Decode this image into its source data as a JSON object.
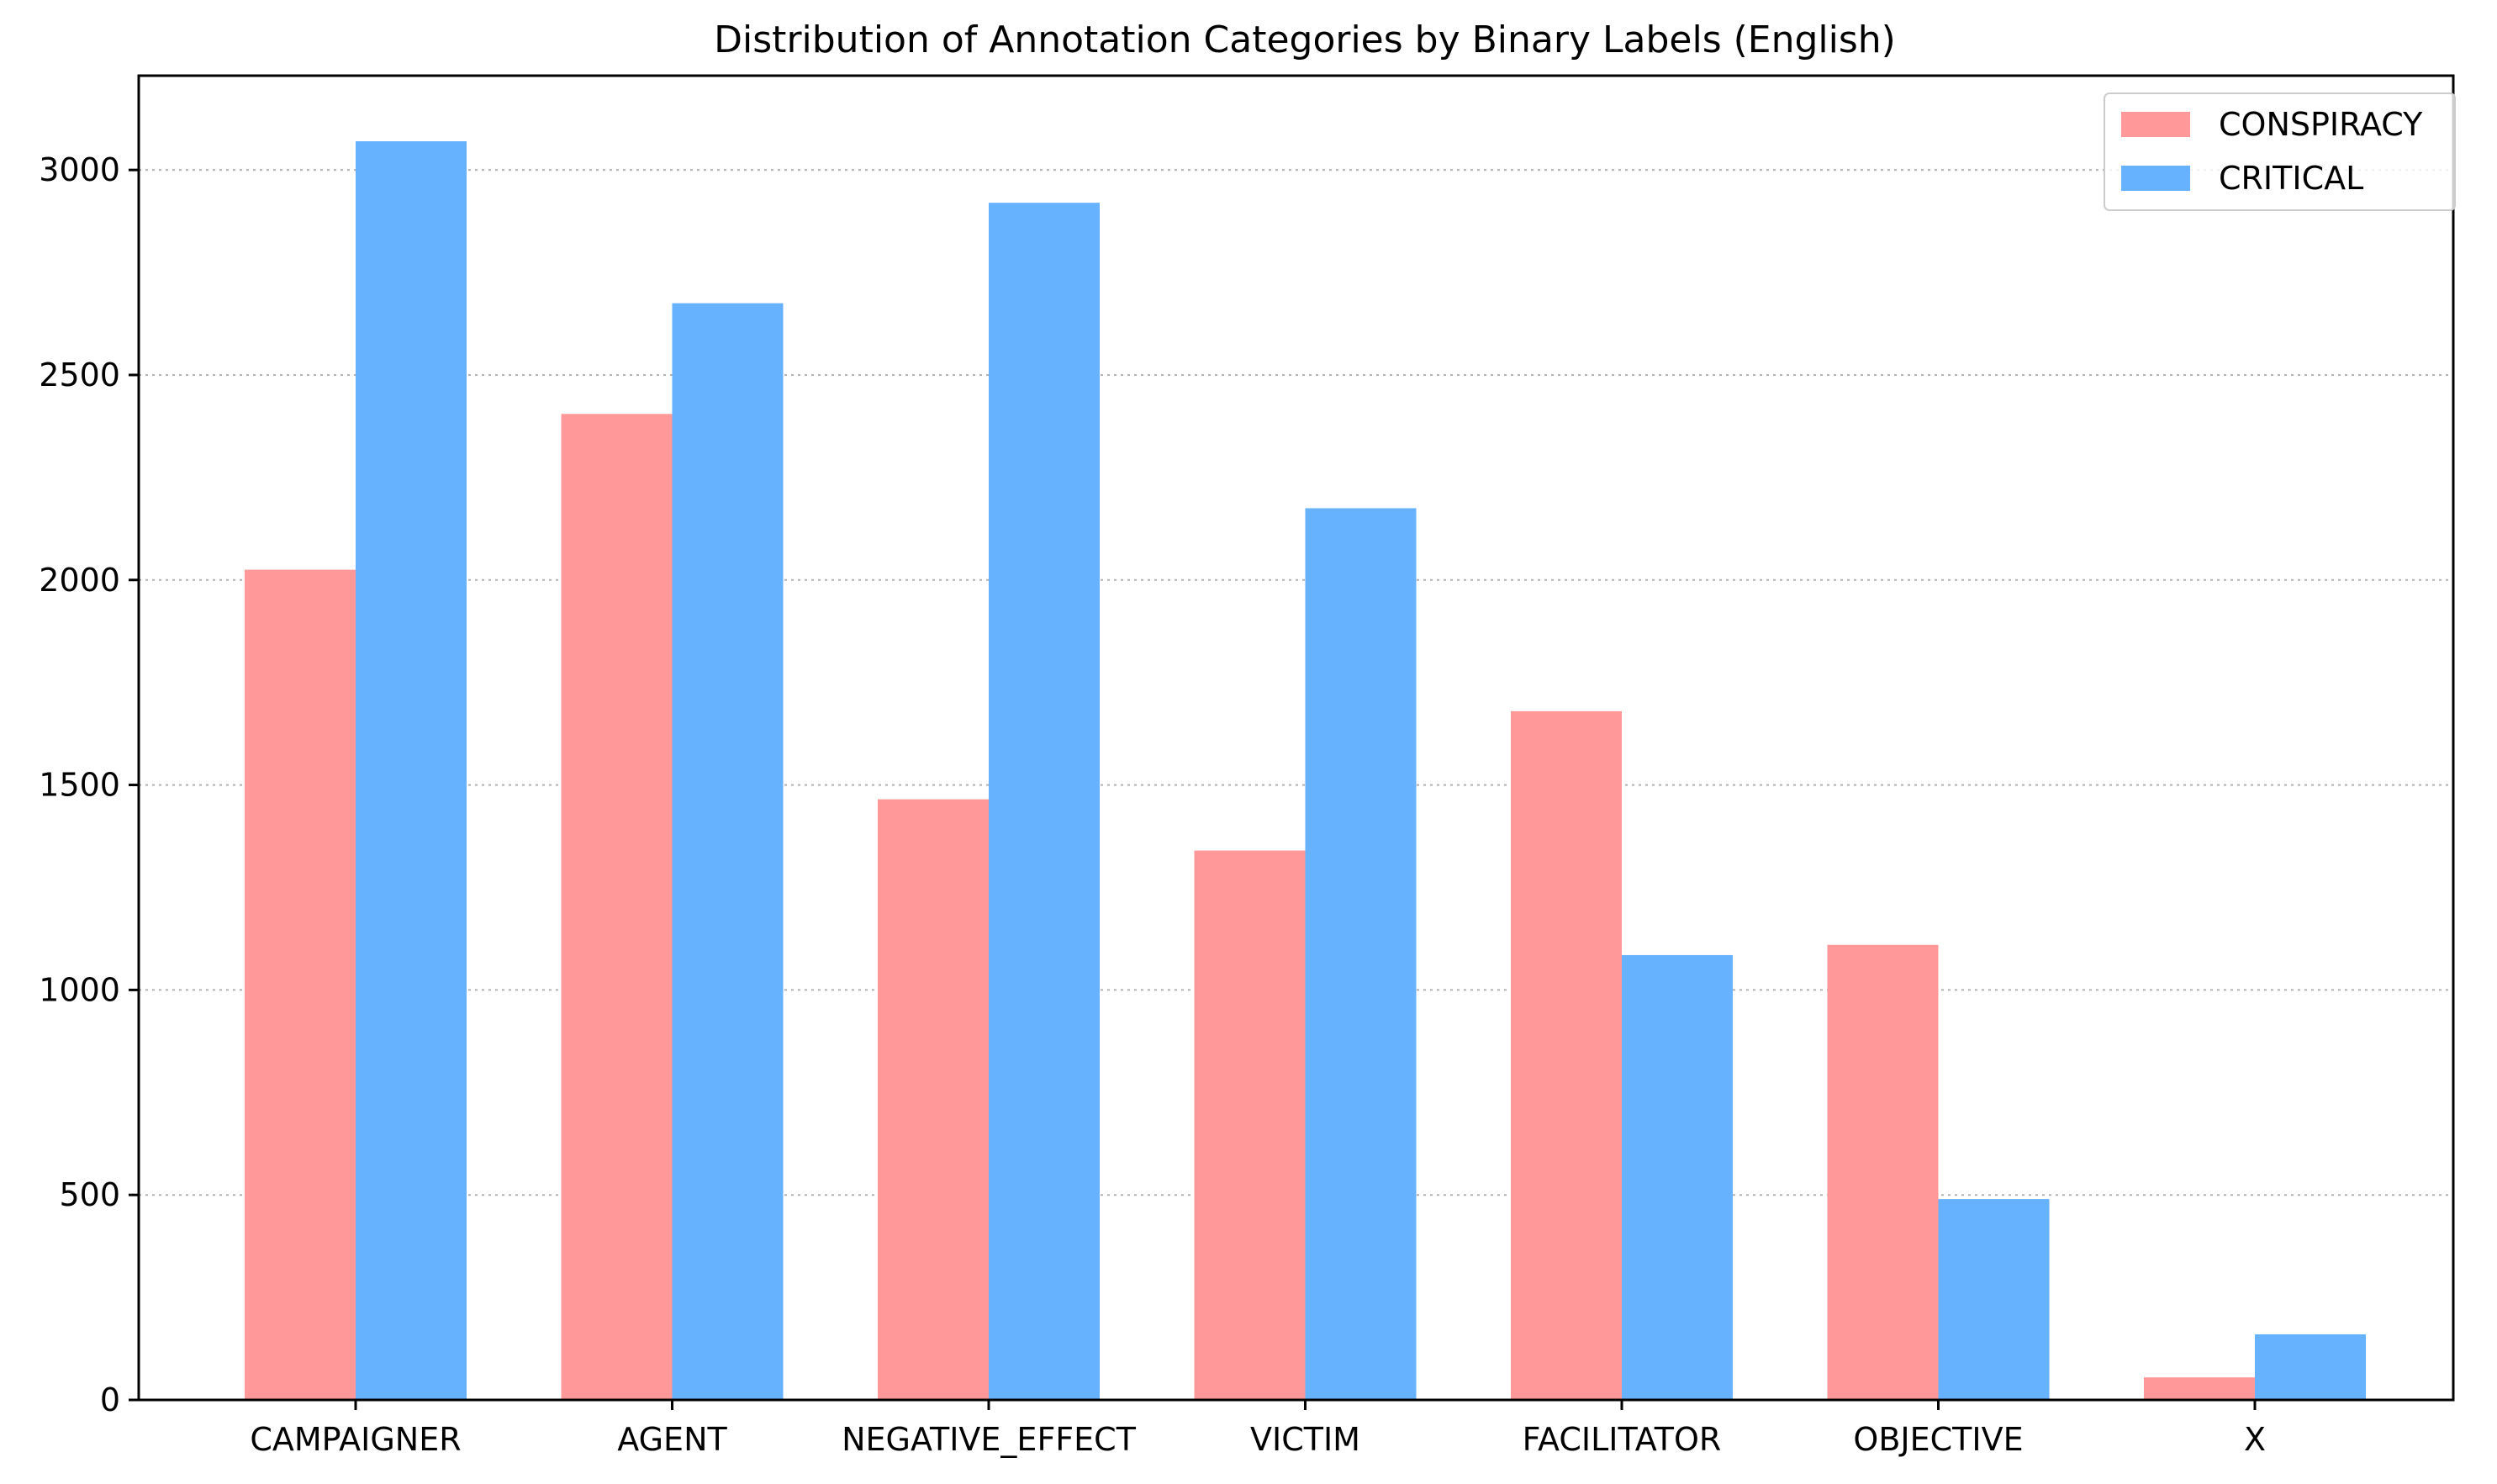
{
  "chart_data": {
    "type": "bar",
    "title": "Distribution of Annotation Categories by Binary Labels (English)",
    "xlabel": "",
    "ylabel": "",
    "categories": [
      "CAMPAIGNER",
      "AGENT",
      "NEGATIVE_EFFECT",
      "VICTIM",
      "FACILITATOR",
      "OBJECTIVE",
      "X"
    ],
    "series": [
      {
        "name": "CONSPIRACY",
        "color": "#ff9999",
        "values": [
          2025,
          2405,
          1465,
          1340,
          1680,
          1110,
          55
        ]
      },
      {
        "name": "CRITICAL",
        "color": "#66b2ff",
        "values": [
          3070,
          2675,
          2920,
          2175,
          1085,
          490,
          160
        ]
      }
    ],
    "ylim": [
      0,
      3230
    ],
    "yticks": [
      0,
      500,
      1000,
      1500,
      2000,
      2500,
      3000
    ],
    "grid": "y-dotted",
    "legend_position": "top-right"
  }
}
